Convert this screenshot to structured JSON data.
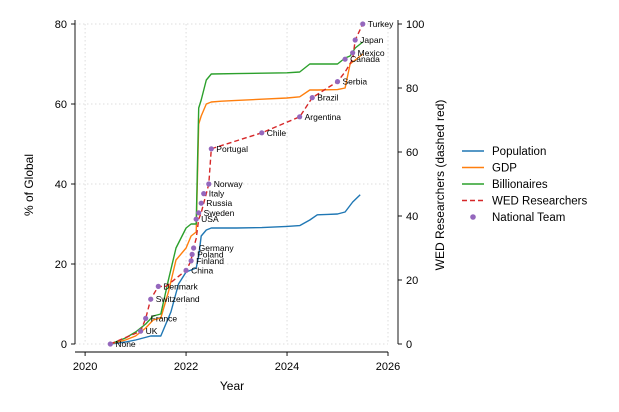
{
  "chart_data": {
    "type": "line",
    "title": "",
    "xlabel": "Year",
    "ylabel_left": "% of Global",
    "ylabel_right": "WED Researchers (dashed red)",
    "xlim": [
      2019.8,
      2026.0
    ],
    "ylim_left": [
      0,
      80
    ],
    "ylim_right": [
      0,
      100
    ],
    "xticks": [
      "2020",
      "2022",
      "2024",
      "2026"
    ],
    "yticks_left": [
      "0",
      "20",
      "40",
      "60",
      "80"
    ],
    "yticks_right": [
      "0",
      "20",
      "40",
      "60",
      "80",
      "100"
    ],
    "grid": true,
    "legend_position": "right",
    "colors": {
      "Population": "#1f77b4",
      "GDP": "#ff7f0e",
      "Billionaires": "#2ca02c",
      "WED Researchers": "#d62728",
      "National Team": "#9467bd"
    },
    "series": [
      {
        "name": "Population",
        "axis": "left",
        "style": "solid",
        "x": [
          2020.5,
          2020.8,
          2021.0,
          2021.15,
          2021.3,
          2021.5,
          2021.7,
          2021.85,
          2022.0,
          2022.2,
          2022.25,
          2022.3,
          2022.4,
          2022.5,
          2023.0,
          2023.5,
          2024.0,
          2024.25,
          2024.45,
          2024.6,
          2024.8,
          2025.0,
          2025.15,
          2025.3,
          2025.45
        ],
        "y": [
          0.0,
          0.5,
          1.0,
          1.5,
          2.0,
          2.0,
          8.0,
          15.0,
          18.0,
          19.0,
          22.0,
          27.0,
          28.5,
          29.0,
          29.0,
          29.1,
          29.4,
          29.6,
          31.0,
          32.3,
          32.4,
          32.5,
          33.0,
          35.5,
          37.3
        ]
      },
      {
        "name": "GDP",
        "axis": "left",
        "style": "solid",
        "x": [
          2020.5,
          2020.8,
          2021.0,
          2021.2,
          2021.35,
          2021.5,
          2021.65,
          2021.8,
          2022.0,
          2022.1,
          2022.2,
          2022.25,
          2022.3,
          2022.4,
          2022.5,
          2022.7,
          2023.0,
          2023.5,
          2024.0,
          2024.25,
          2024.45,
          2024.6,
          2025.0,
          2025.15,
          2025.25,
          2025.35,
          2025.5
        ],
        "y": [
          0.0,
          1.0,
          2.0,
          4.0,
          6.0,
          6.5,
          13.0,
          21.0,
          24.0,
          27.0,
          28.0,
          55.0,
          57.0,
          60.0,
          60.5,
          60.7,
          60.9,
          61.2,
          61.5,
          61.8,
          63.5,
          63.5,
          63.6,
          64.0,
          70.0,
          71.0,
          72.5
        ]
      },
      {
        "name": "Billionaires",
        "axis": "left",
        "style": "solid",
        "x": [
          2020.5,
          2020.8,
          2021.0,
          2021.2,
          2021.35,
          2021.5,
          2021.65,
          2021.8,
          2022.0,
          2022.1,
          2022.2,
          2022.25,
          2022.3,
          2022.4,
          2022.5,
          2023.0,
          2023.5,
          2024.0,
          2024.25,
          2024.45,
          2024.6,
          2025.0,
          2025.15,
          2025.25,
          2025.35,
          2025.5
        ],
        "y": [
          0.0,
          1.5,
          3.0,
          5.0,
          7.0,
          7.5,
          16.0,
          24.0,
          29.0,
          30.0,
          30.0,
          59.0,
          61.0,
          66.0,
          67.5,
          67.6,
          67.7,
          67.8,
          68.0,
          70.0,
          70.0,
          70.0,
          71.5,
          72.0,
          74.0,
          75.5
        ]
      },
      {
        "name": "WED Researchers",
        "axis": "right",
        "style": "dashed",
        "x": [
          2020.5,
          2021.1,
          2021.2,
          2021.3,
          2021.45,
          2021.6,
          2022.0,
          2022.1,
          2022.12,
          2022.15,
          2022.2,
          2022.25,
          2022.3,
          2022.35,
          2022.4,
          2022.45,
          2022.5,
          2023.5,
          2024.25,
          2024.5,
          2025.0,
          2025.15,
          2025.3,
          2025.35,
          2025.5
        ],
        "y": [
          0,
          4,
          8,
          14,
          18,
          18,
          23,
          26,
          28,
          30,
          33,
          39,
          41,
          44,
          47,
          50,
          61,
          66,
          71,
          77,
          82,
          85,
          89,
          95,
          100
        ]
      }
    ],
    "points": {
      "name": "National Team",
      "axis": "right",
      "items": [
        {
          "x": 2020.5,
          "y": 0,
          "label": "None"
        },
        {
          "x": 2021.1,
          "y": 4,
          "label": "UK"
        },
        {
          "x": 2021.2,
          "y": 8,
          "label": "France"
        },
        {
          "x": 2021.3,
          "y": 14,
          "label": "Switzerland"
        },
        {
          "x": 2021.45,
          "y": 18,
          "label": "Denmark"
        },
        {
          "x": 2022.0,
          "y": 23,
          "label": "China"
        },
        {
          "x": 2022.1,
          "y": 26,
          "label": "Finland"
        },
        {
          "x": 2022.12,
          "y": 28,
          "label": "Poland"
        },
        {
          "x": 2022.15,
          "y": 30,
          "label": "Germany"
        },
        {
          "x": 2022.2,
          "y": 39,
          "label": "USA"
        },
        {
          "x": 2022.25,
          "y": 41,
          "label": "Sweden"
        },
        {
          "x": 2022.3,
          "y": 44,
          "label": "Russia"
        },
        {
          "x": 2022.35,
          "y": 47,
          "label": "Italy"
        },
        {
          "x": 2022.45,
          "y": 50,
          "label": "Norway"
        },
        {
          "x": 2022.5,
          "y": 61,
          "label": "Portugal"
        },
        {
          "x": 2023.5,
          "y": 66,
          "label": "Chile"
        },
        {
          "x": 2024.25,
          "y": 71,
          "label": "Argentina"
        },
        {
          "x": 2024.5,
          "y": 77,
          "label": "Brazil"
        },
        {
          "x": 2025.0,
          "y": 82,
          "label": "Serbia"
        },
        {
          "x": 2025.15,
          "y": 89,
          "label": "Canada"
        },
        {
          "x": 2025.3,
          "y": 91,
          "label": "Mexico"
        },
        {
          "x": 2025.35,
          "y": 95,
          "label": "Japan"
        },
        {
          "x": 2025.5,
          "y": 100,
          "label": "Turkey"
        }
      ]
    },
    "legend": [
      "Population",
      "GDP",
      "Billionaires",
      "WED Researchers",
      "National Team"
    ]
  }
}
